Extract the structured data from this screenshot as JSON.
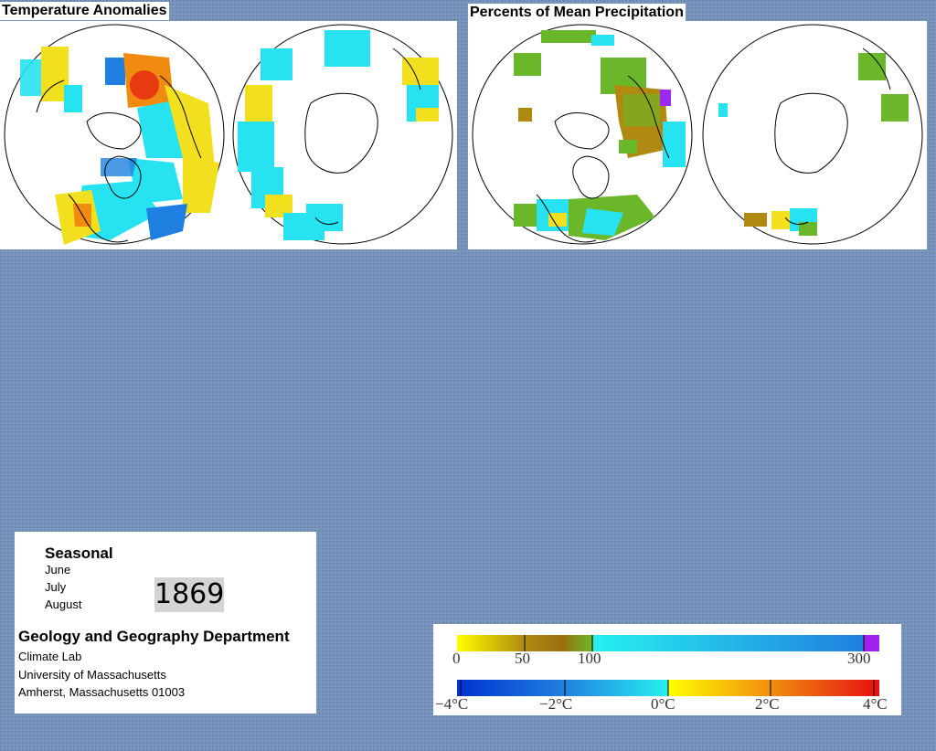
{
  "panels": {
    "temperature": {
      "title": "Temperature Anomalies"
    },
    "precipitation": {
      "title": "Percents of Mean Precipitation"
    }
  },
  "season": {
    "label": "Seasonal",
    "months": [
      "June",
      "July",
      "August"
    ],
    "year": "1869"
  },
  "credits": {
    "department": "Geology and Geography Department",
    "lines": [
      "Climate Lab",
      "University of Massachusetts",
      "Amherst, Massachusetts 01003"
    ]
  },
  "legend": {
    "precip_ticks": [
      "0",
      "50",
      "100",
      "300"
    ],
    "temp_ticks": [
      "−4°C",
      "−2°C",
      "0°C",
      "2°C",
      "4°C"
    ]
  },
  "colors": {
    "background": "#7a96bc",
    "cold": "#1f7fe0",
    "cyan": "#27e2f0",
    "warm_yellow": "#f2e01e",
    "warm_orange": "#f08a10",
    "hot_red": "#e62b12",
    "dry_olive": "#b08a10",
    "normal_green": "#6ab82a",
    "wet_purple": "#9a2af0"
  }
}
